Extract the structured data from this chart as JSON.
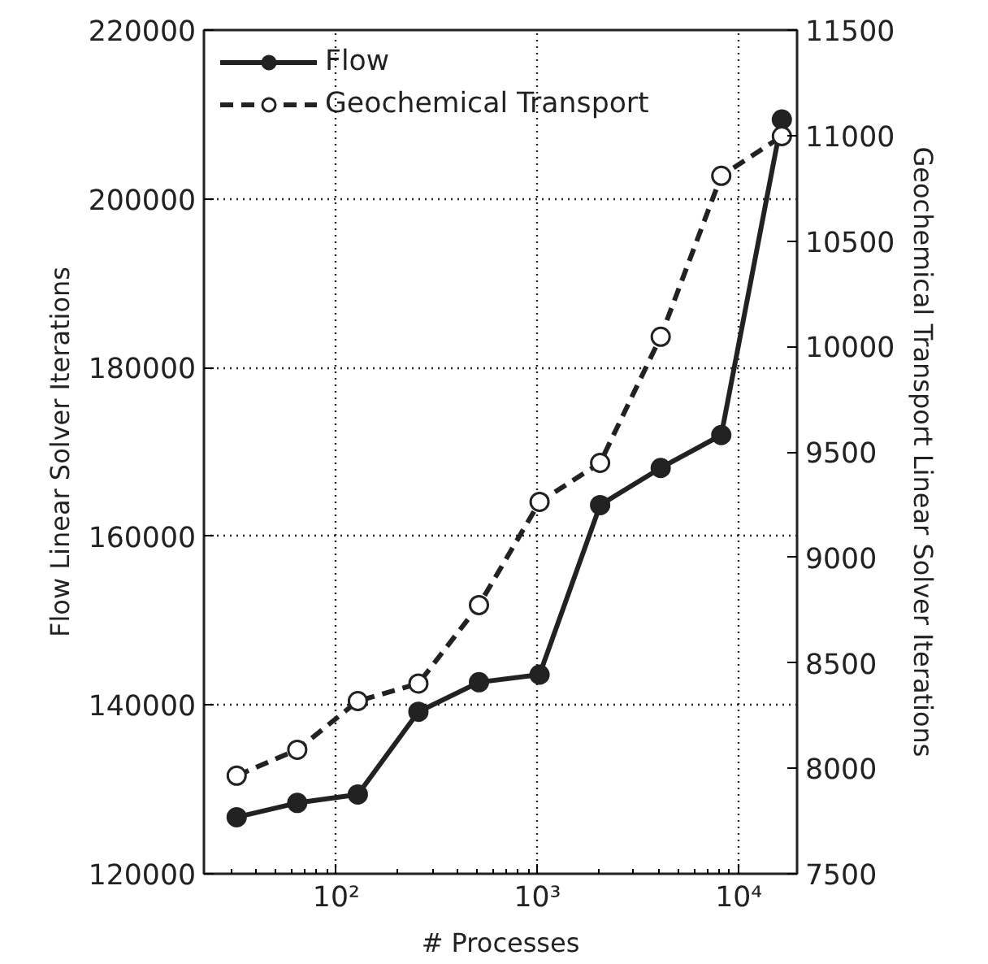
{
  "chart_data": {
    "type": "line",
    "xlabel": "# Processes",
    "ylabel": "Flow Linear Solver Iterations",
    "y2label": "Geochemical Transport Linear Solver Iterations",
    "x": [
      32,
      64,
      128,
      256,
      512,
      1024,
      2048,
      4096,
      8192,
      16384
    ],
    "log": "x",
    "xlim": [
      22,
      19500
    ],
    "xticks": [
      {
        "value": 100,
        "label": "10²"
      },
      {
        "value": 1000,
        "label": "10³"
      },
      {
        "value": 10000,
        "label": "10⁴"
      }
    ],
    "ylim": [
      120000,
      220000
    ],
    "yticks": [
      120000,
      140000,
      160000,
      180000,
      200000,
      220000
    ],
    "y2lim": [
      7500,
      11500
    ],
    "y2ticks": [
      7500,
      8000,
      8500,
      9000,
      9500,
      10000,
      10500,
      11000,
      11500
    ],
    "grid": true,
    "legend": "top left",
    "marker": "circle",
    "series": [
      {
        "name": "Flow",
        "color": "#222222",
        "line_style": "solid",
        "values": [
          126700,
          128400,
          129400,
          139200,
          142700,
          143600,
          163700,
          168100,
          172000,
          209400
        ]
      },
      {
        "name": "Geochemical Transport",
        "color": "#222222",
        "line_style": "dashed",
        "axis": "y2",
        "values": [
          7965,
          8088,
          8319,
          8402,
          8774,
          9263,
          9448,
          10046,
          10809,
          10997
        ]
      }
    ]
  }
}
